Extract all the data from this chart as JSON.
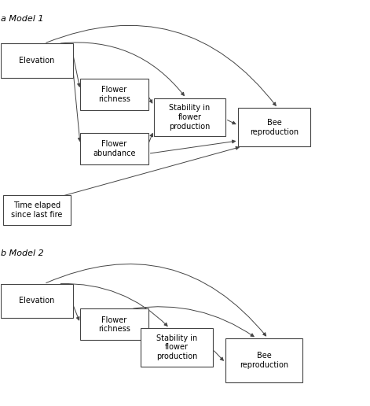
{
  "bg_color": "#ffffff",
  "model1_label": "a Model 1",
  "model2_label": "b Model 2",
  "font_size": 7,
  "label_font_size": 8,
  "box_edge_color": "#444444",
  "arrow_color": "#444444",
  "boxes_m1": {
    "elevation": [
      0.0,
      0.81,
      0.195,
      0.085
    ],
    "flower_richness": [
      0.215,
      0.73,
      0.185,
      0.078
    ],
    "flower_abundance": [
      0.215,
      0.595,
      0.185,
      0.078
    ],
    "stability": [
      0.415,
      0.665,
      0.195,
      0.095
    ],
    "bee_repro": [
      0.645,
      0.64,
      0.195,
      0.095
    ],
    "time_fire": [
      0.005,
      0.445,
      0.185,
      0.075
    ]
  },
  "boxes_m2": {
    "elevation": [
      0.0,
      0.215,
      0.195,
      0.085
    ],
    "flower_richness": [
      0.215,
      0.16,
      0.185,
      0.078
    ],
    "stability": [
      0.38,
      0.095,
      0.195,
      0.095
    ],
    "bee_repro": [
      0.61,
      0.055,
      0.21,
      0.11
    ]
  },
  "box_labels": {
    "elevation": "Elevation",
    "flower_richness": "Flower\nrichness",
    "flower_abundance": "Flower\nabundance",
    "stability": "Stability in\nflower\nproduction",
    "bee_repro": "Bee\nreproduction",
    "time_fire": "Time elaped\nsince last fire"
  }
}
